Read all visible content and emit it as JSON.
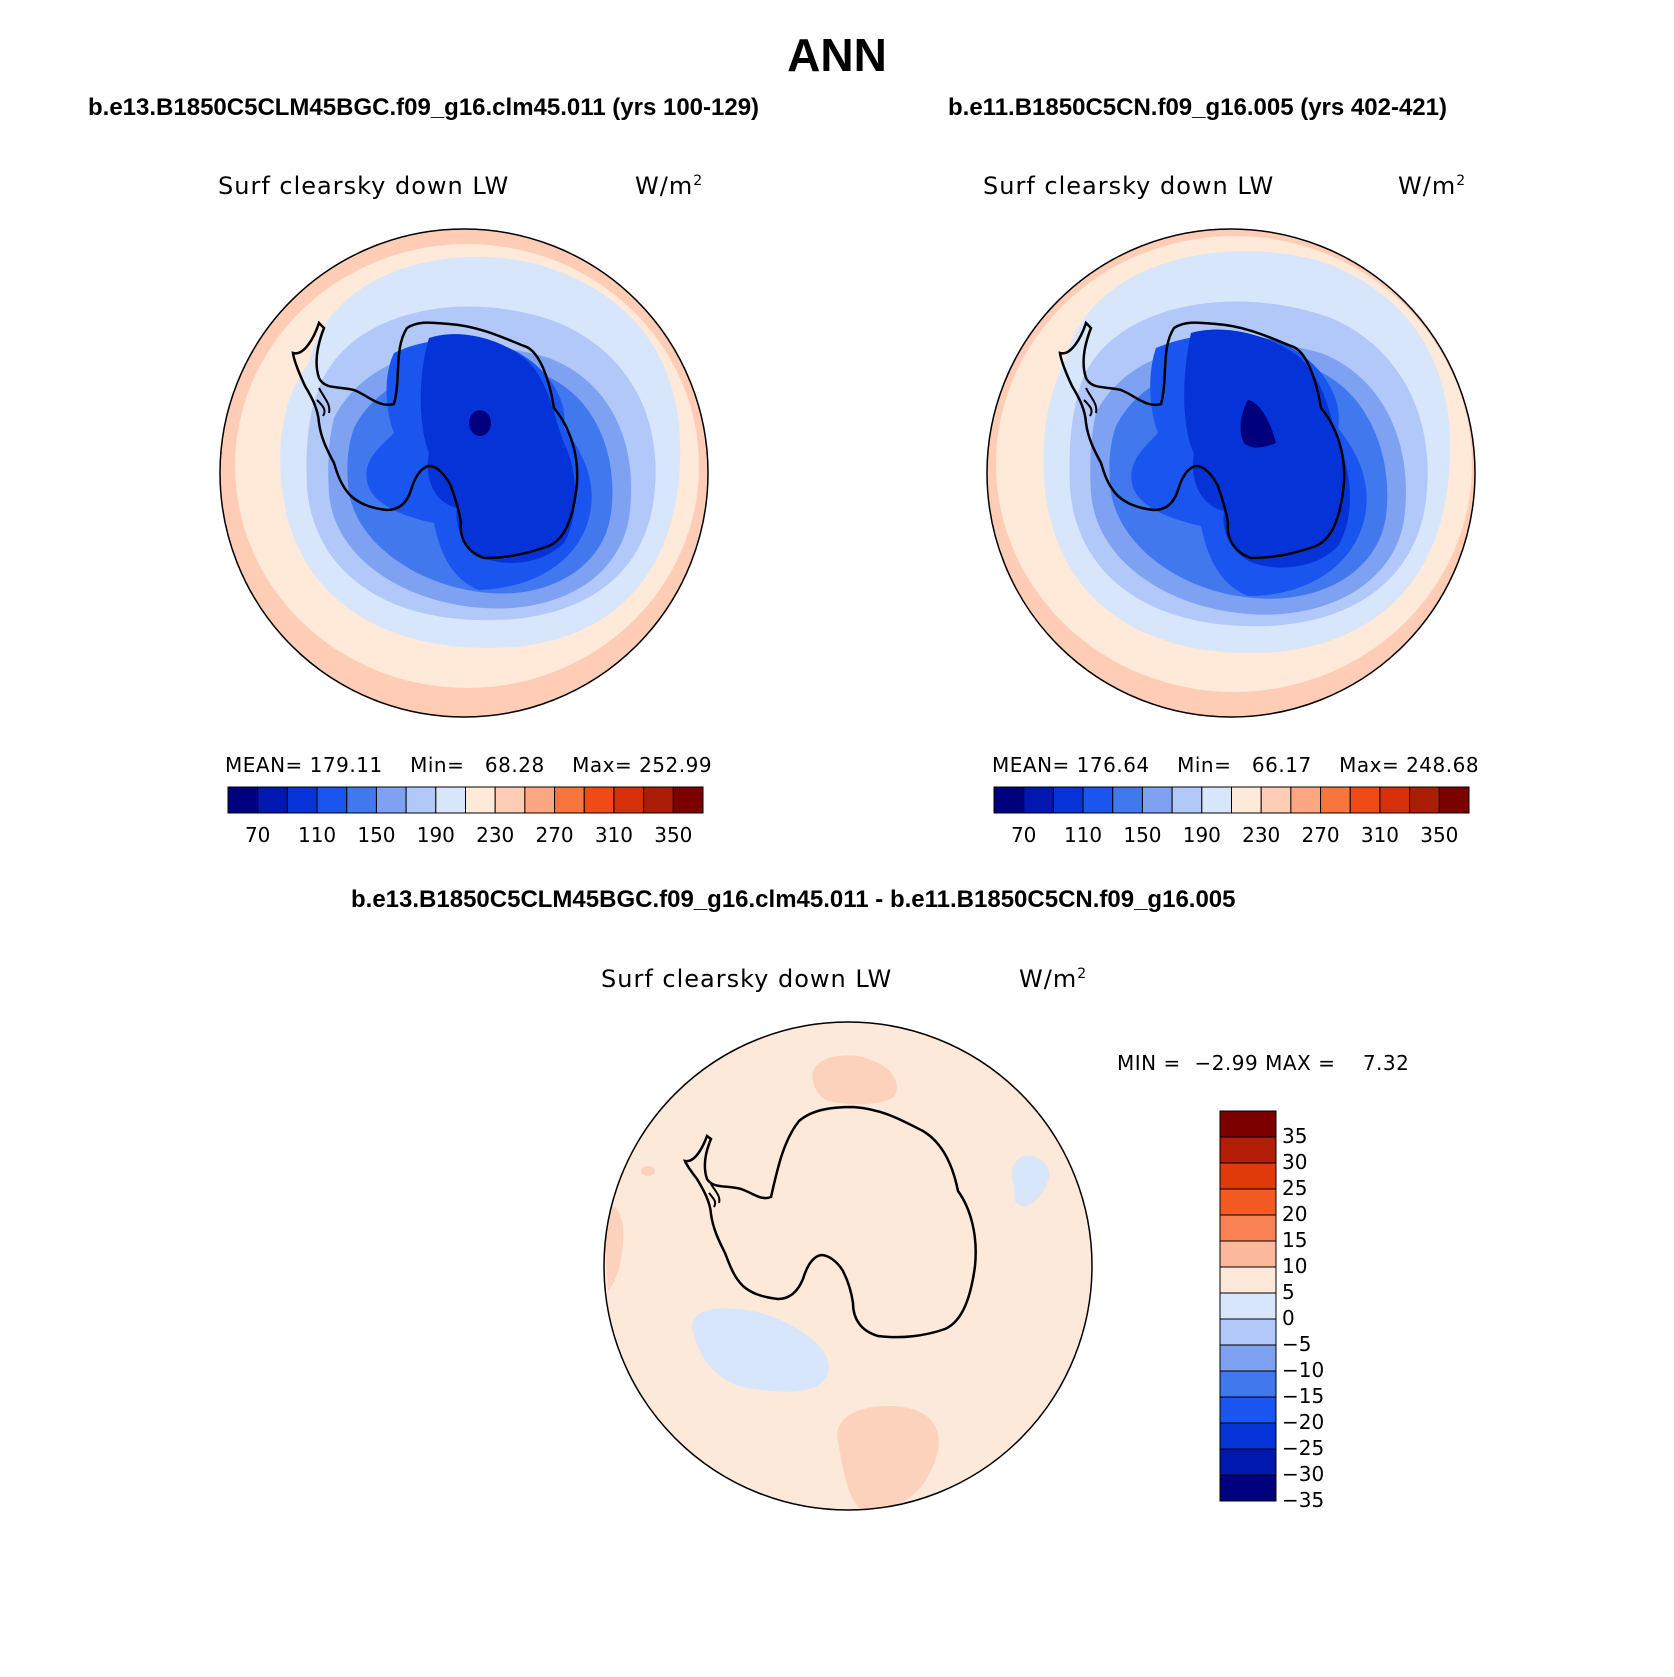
{
  "title": "ANN",
  "panels": [
    {
      "case": "b.e13.B1850C5CLM45BGC.f09_g16.clm45.011 (yrs 100-129)",
      "variable": "Surf clearsky down LW",
      "units": "W/m",
      "units_exp": "2",
      "mean_label": "MEAN=",
      "mean": "179.11",
      "min_label": "Min=",
      "min": "68.28",
      "max_label": "Max=",
      "max": "252.99"
    },
    {
      "case": "b.e11.B1850C5CN.f09_g16.005 (yrs 402-421)",
      "variable": "Surf clearsky down LW",
      "units": "W/m",
      "units_exp": "2",
      "mean_label": "MEAN=",
      "mean": "176.64",
      "min_label": "Min=",
      "min": "66.17",
      "max_label": "Max=",
      "max": "248.68"
    }
  ],
  "colorbar": {
    "colors": [
      "#00007f",
      "#0017b0",
      "#0533d8",
      "#1a55f0",
      "#4178ee",
      "#7ea1f2",
      "#b2c8f8",
      "#d7e6fb",
      "#ffe9d9",
      "#ffcdb5",
      "#fca782",
      "#f8753e",
      "#f04b17",
      "#d6300a",
      "#ab1d06",
      "#7d0000"
    ],
    "ticks": [
      "70",
      "110",
      "150",
      "190",
      "230",
      "270",
      "310",
      "350"
    ]
  },
  "difference": {
    "title": "b.e13.B1850C5CLM45BGC.f09_g16.clm45.011 - b.e11.B1850C5CN.f09_g16.005",
    "variable": "Surf clearsky down LW",
    "units": "W/m",
    "units_exp": "2",
    "min_label": "MIN =",
    "min": "−2.99",
    "max_label": "MAX =",
    "max": "7.32",
    "colors": [
      "#00007f",
      "#0017b0",
      "#0533d8",
      "#1a55f0",
      "#4178ee",
      "#7ea1f2",
      "#b2c8f8",
      "#d7e6fb",
      "#fde9d9",
      "#fcb89a",
      "#fa8254",
      "#f25c23",
      "#e03a0b",
      "#b31d06",
      "#7d0000"
    ],
    "ticks": [
      "35",
      "30",
      "25",
      "20",
      "15",
      "10",
      "5",
      "0",
      "−5",
      "−10",
      "−15",
      "−20",
      "−25",
      "−30",
      "−35"
    ]
  }
}
